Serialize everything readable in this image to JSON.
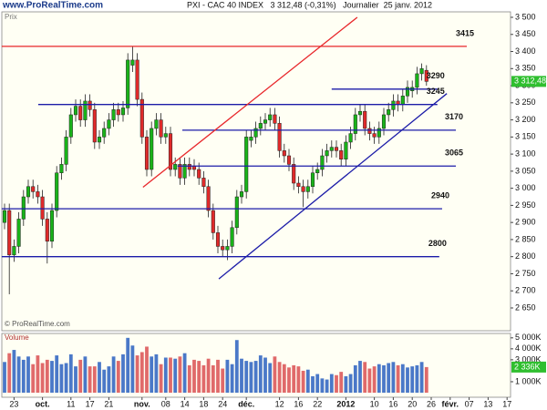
{
  "chart_data": [
    {
      "type": "candlestick",
      "site": "www.ProRealTime.com",
      "title": "PXI - CAC 40 INDEX   3 312,48 (-0,31%)   Journalier  25 janv. 2012",
      "panel_label": "Prix",
      "copyright": "© ProRealTime.com",
      "up_color": "#19b319",
      "down_color": "#e02a2a",
      "categories": [
        null,
        null,
        "23",
        null,
        null,
        null,
        null,
        null,
        "oct.",
        null,
        null,
        null,
        null,
        null,
        "11",
        null,
        null,
        null,
        "17",
        null,
        null,
        null,
        "21",
        null,
        null,
        null,
        null,
        null,
        null,
        "nov.",
        null,
        null,
        null,
        null,
        "08",
        null,
        null,
        null,
        "14",
        null,
        null,
        null,
        "18",
        null,
        null,
        null,
        "24",
        null,
        null,
        null,
        null,
        "déc.",
        null,
        null,
        null,
        null,
        null,
        null,
        "12",
        null,
        null,
        null,
        "16",
        null,
        null,
        null,
        "22",
        null,
        null,
        null,
        null,
        null,
        "2012",
        null,
        null,
        null,
        null,
        null,
        "10",
        null,
        null,
        null,
        "16",
        null,
        null,
        null,
        "20",
        null,
        null,
        null,
        "26",
        null,
        null,
        null,
        "févr.",
        null,
        null,
        null,
        "07",
        null,
        null,
        null,
        "13",
        null,
        null,
        null,
        "17"
      ],
      "open": [
        2900,
        2935,
        2805,
        2830,
        2910,
        2975,
        3005,
        2990,
        2975,
        2910,
        2845,
        2935,
        3045,
        3070,
        3150,
        3215,
        3240,
        3200,
        3255,
        3230,
        3135,
        3150,
        3175,
        3200,
        3230,
        3215,
        3235,
        3360,
        3375,
        3260,
        3150,
        3055,
        3175,
        3200,
        3150,
        3160,
        3055,
        3070,
        3030,
        3070,
        3065,
        3055,
        3030,
        3005,
        2935,
        2870,
        2830,
        2820,
        2830,
        2885,
        2975,
        2990,
        3140,
        3150,
        3175,
        3190,
        3200,
        3215,
        3190,
        3110,
        3095,
        3070,
        3015,
        3005,
        2990,
        3005,
        3045,
        3055,
        3095,
        3110,
        3120,
        3110,
        3085,
        3135,
        3160,
        3215,
        3225,
        3175,
        3160,
        3150,
        3175,
        3215,
        3230,
        3255,
        3245,
        3270,
        3285,
        3295,
        3335,
        3345,
        null,
        null,
        null,
        null,
        null,
        null,
        null,
        null,
        null,
        null,
        null,
        null,
        null,
        null,
        null,
        null,
        null
      ],
      "high": [
        2955,
        2955,
        2850,
        2930,
        2995,
        3025,
        3025,
        3010,
        2995,
        2930,
        2955,
        3065,
        3090,
        3170,
        3235,
        3260,
        3260,
        3275,
        3275,
        3250,
        3170,
        3195,
        3220,
        3250,
        3250,
        3255,
        3395,
        3415,
        3395,
        3280,
        3170,
        3195,
        3220,
        3220,
        3180,
        3180,
        3090,
        3090,
        3090,
        3090,
        3085,
        3075,
        3050,
        3025,
        2955,
        2890,
        2850,
        2850,
        2905,
        2995,
        3010,
        3170,
        3170,
        3195,
        3210,
        3220,
        3235,
        3235,
        3210,
        3130,
        3115,
        3090,
        3035,
        3025,
        3025,
        3065,
        3075,
        3115,
        3130,
        3140,
        3140,
        3130,
        3155,
        3180,
        3235,
        3245,
        3245,
        3195,
        3180,
        3195,
        3235,
        3250,
        3275,
        3275,
        3290,
        3315,
        3315,
        3355,
        3365,
        3360,
        null,
        null,
        null,
        null,
        null,
        null,
        null,
        null,
        null,
        null,
        null,
        null,
        null,
        null,
        null,
        null,
        null
      ],
      "low": [
        2880,
        2690,
        2785,
        2810,
        2890,
        2955,
        2970,
        2955,
        2890,
        2780,
        2825,
        2915,
        3025,
        3050,
        3130,
        3195,
        3180,
        3180,
        3210,
        3115,
        3115,
        3130,
        3155,
        3180,
        3195,
        3195,
        3215,
        3340,
        3240,
        3130,
        3035,
        3035,
        3155,
        3130,
        3130,
        3035,
        3035,
        3010,
        3010,
        3035,
        3035,
        3010,
        2985,
        2915,
        2850,
        2810,
        2800,
        2790,
        2810,
        2865,
        2955,
        2970,
        3120,
        3130,
        3155,
        3170,
        3180,
        3170,
        3090,
        3075,
        3050,
        2995,
        2985,
        2945,
        2970,
        2985,
        3025,
        3035,
        3075,
        3090,
        3090,
        3065,
        3065,
        3115,
        3140,
        3195,
        3155,
        3140,
        3130,
        3130,
        3155,
        3195,
        3210,
        3225,
        3225,
        3250,
        3265,
        3275,
        3315,
        3300,
        null,
        null,
        null,
        null,
        null,
        null,
        null,
        null,
        null,
        null,
        null,
        null,
        null,
        null,
        null,
        null,
        null
      ],
      "close": [
        2935,
        2805,
        2830,
        2910,
        2975,
        3005,
        2990,
        2975,
        2910,
        2845,
        2935,
        3045,
        3070,
        3150,
        3215,
        3240,
        3200,
        3255,
        3230,
        3135,
        3150,
        3175,
        3200,
        3230,
        3215,
        3235,
        3375,
        3375,
        3260,
        3150,
        3055,
        3175,
        3200,
        3150,
        3160,
        3055,
        3070,
        3030,
        3070,
        3055,
        3055,
        3030,
        3005,
        2935,
        2870,
        2830,
        2820,
        2830,
        2885,
        2975,
        2990,
        3150,
        3150,
        3175,
        3190,
        3200,
        3215,
        3190,
        3110,
        3095,
        3070,
        3015,
        3005,
        2990,
        3005,
        3045,
        3055,
        3095,
        3110,
        3120,
        3110,
        3085,
        3135,
        3160,
        3215,
        3225,
        3175,
        3160,
        3150,
        3175,
        3215,
        3230,
        3255,
        3245,
        3270,
        3295,
        3295,
        3335,
        3350,
        3312.48,
        null,
        null,
        null,
        null,
        null,
        null,
        null,
        null,
        null,
        null,
        null,
        null,
        null,
        null,
        null,
        null,
        null
      ],
      "last_label": "3 312,48",
      "ylim": [
        2586,
        3516
      ],
      "yticks": [
        {
          "value": 3500,
          "label": "3 500"
        },
        {
          "value": 3450,
          "label": "3 450"
        },
        {
          "value": 3400,
          "label": "3 400"
        },
        {
          "value": 3350,
          "label": "3 350"
        },
        {
          "value": 3300,
          "label": "3 300"
        },
        {
          "value": 3250,
          "label": "3 250"
        },
        {
          "value": 3200,
          "label": "3 200"
        },
        {
          "value": 3150,
          "label": "3 150"
        },
        {
          "value": 3100,
          "label": "3 100"
        },
        {
          "value": 3050,
          "label": "3 050"
        },
        {
          "value": 3000,
          "label": "3 000"
        },
        {
          "value": 2950,
          "label": "2 950"
        },
        {
          "value": 2900,
          "label": "2 900"
        },
        {
          "value": 2850,
          "label": "2 850"
        },
        {
          "value": 2800,
          "label": "2 800"
        },
        {
          "value": 2750,
          "label": "2 750"
        },
        {
          "value": 2700,
          "label": "2 700"
        },
        {
          "value": 2650,
          "label": "2 650"
        }
      ],
      "levels": [
        {
          "value": 3415,
          "color": "#e8262a",
          "x": [
            -0.6,
            97.5
          ]
        },
        {
          "value": 3290,
          "color": "#1c1ca8",
          "x": [
            69,
            91.3
          ]
        },
        {
          "value": 3245,
          "color": "#1c1ca8",
          "x": [
            7.1,
            91.3
          ]
        },
        {
          "value": 3170,
          "color": "#1c1ca8",
          "x": [
            37.5,
            95.2
          ]
        },
        {
          "value": 3065,
          "color": "#1c1ca8",
          "x": [
            36.5,
            95.2
          ]
        },
        {
          "value": 2940,
          "color": "#1c1ca8",
          "x": [
            -0.6,
            92.3
          ]
        },
        {
          "value": 2800,
          "color": "#1c1ca8",
          "x": [
            -0.6,
            91.7
          ]
        }
      ],
      "trend_lines": [
        {
          "color": "#e8262a",
          "x": [
            29.2,
            74.4
          ],
          "values": [
            3003,
            3500
          ]
        },
        {
          "color": "#1c1ca8",
          "x": [
            45.2,
            93.3
          ],
          "values": [
            2735,
            3277
          ]
        }
      ]
    },
    {
      "type": "bar",
      "panel_label": "Volume",
      "up_color": "#4a78c8",
      "down_color": "#e06a6a",
      "values": [
        2800,
        3600,
        3900,
        3300,
        3000,
        3300,
        2600,
        3400,
        2700,
        3000,
        2900,
        3400,
        2600,
        2700,
        3500,
        2400,
        3000,
        3300,
        2400,
        2400,
        2800,
        2100,
        2400,
        3300,
        2900,
        3500,
        5000,
        4300,
        3400,
        3700,
        4200,
        3300,
        3500,
        2600,
        3200,
        3200,
        3100,
        3300,
        3600,
        2500,
        3000,
        2900,
        2500,
        3100,
        2500,
        3000,
        2200,
        3000,
        2600,
        4800,
        3100,
        2900,
        2800,
        2900,
        3400,
        3200,
        2700,
        3300,
        2800,
        2600,
        2300,
        2500,
        2400,
        2000,
        2100,
        1500,
        1700,
        1300,
        1200,
        1700,
        1600,
        1900,
        1500,
        1700,
        2500,
        2900,
        2800,
        2200,
        2400,
        2600,
        2500,
        2700,
        2800,
        2500,
        2600,
        2300,
        2400,
        2500,
        2800,
        2336,
        null,
        null,
        null,
        null,
        null,
        null,
        null,
        null,
        null,
        null,
        null,
        null,
        null,
        null,
        null,
        null,
        null
      ],
      "last_label": "2 336K",
      "ylim": [
        0,
        5400
      ],
      "yticks": [
        {
          "value": 5000,
          "label": "5 000K"
        },
        {
          "value": 4000,
          "label": "4 000K"
        },
        {
          "value": 3000,
          "label": "3 000K"
        },
        {
          "value": 1000,
          "label": "1 000K"
        }
      ]
    }
  ]
}
